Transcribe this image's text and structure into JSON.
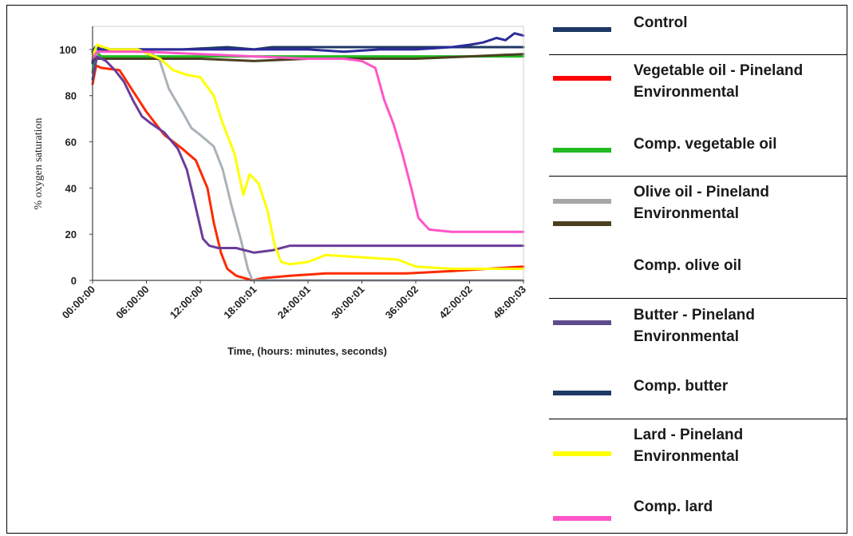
{
  "chart_data": {
    "type": "line",
    "title": "",
    "xlabel": "Time, (hours: minutes, seconds)",
    "ylabel": "% oxygen saturation",
    "ylim": [
      0,
      100
    ],
    "yticks": [
      0,
      20,
      40,
      60,
      80,
      100
    ],
    "xticks": [
      "00:00:00",
      "06:00:00",
      "12:00:00",
      "18:00:01",
      "24:00:01",
      "30:00:01",
      "36:00:02",
      "42:00:02",
      "48:00:03"
    ],
    "x_units": "hours",
    "grid": false,
    "series": [
      {
        "name": "Control",
        "color": "#1f3864",
        "x": [
          0,
          0.3,
          0.6,
          3,
          6,
          10,
          15,
          18,
          20,
          24,
          28,
          30,
          34,
          38,
          42,
          48
        ],
        "y": [
          99,
          101,
          100,
          100,
          100,
          100,
          101,
          100,
          101,
          101,
          101,
          101,
          101,
          101,
          101,
          101
        ]
      },
      {
        "name": "Vegetable oil - Pineland Environmental",
        "color": "#ff2a00",
        "x": [
          0,
          0.4,
          1,
          3,
          4.5,
          6,
          8,
          10,
          11.5,
          12.8,
          13.5,
          14.3,
          15,
          16,
          17.8,
          19,
          22,
          26,
          30,
          35,
          40,
          44,
          48
        ],
        "y": [
          85,
          93,
          92,
          91,
          82,
          73,
          63,
          57,
          52,
          40,
          25,
          12,
          5,
          2,
          0,
          1,
          2,
          3,
          3,
          3,
          4,
          5,
          6
        ]
      },
      {
        "name": "Comp. vegetable oil",
        "color": "#22bb22",
        "x": [
          0,
          0.3,
          1,
          6,
          12,
          18,
          24,
          30,
          36,
          42,
          48
        ],
        "y": [
          90,
          99,
          97,
          97,
          97,
          97,
          97,
          97,
          97,
          97,
          97
        ]
      },
      {
        "name": "Olive oil - Pineland Environmental",
        "color": "#aab2b8",
        "x": [
          0,
          0.5,
          2,
          5,
          6.5,
          7.5,
          8.5,
          10,
          11,
          12,
          13.5,
          14.5,
          15.5,
          16.5,
          17.3,
          17.8,
          18.5,
          24,
          30,
          36,
          42,
          48
        ],
        "y": [
          98,
          101,
          100,
          99,
          99,
          95,
          83,
          73,
          66,
          63,
          58,
          48,
          32,
          18,
          5,
          0,
          0,
          0,
          0,
          0,
          0,
          0
        ]
      },
      {
        "name": "Comp. olive oil",
        "color": "#4a4020",
        "x": [
          0,
          0.3,
          1,
          6,
          12,
          18,
          24,
          30,
          36,
          42,
          48
        ],
        "y": [
          95,
          96,
          96,
          96,
          96,
          95,
          96,
          96,
          96,
          97,
          98
        ]
      },
      {
        "name": "Butter - Pineland Environmental",
        "color": "#6a3d9a",
        "x": [
          0,
          0.5,
          1.5,
          2.5,
          3.5,
          4.5,
          5.5,
          6.5,
          8,
          9.5,
          10.5,
          11.3,
          12.3,
          13,
          14,
          16,
          18,
          20,
          22,
          26,
          30,
          34,
          38,
          42,
          48
        ],
        "y": [
          87,
          97,
          95,
          91,
          86,
          78,
          71,
          68,
          64,
          57,
          48,
          35,
          18,
          15,
          14,
          14,
          12,
          13,
          15,
          15,
          15,
          15,
          15,
          15,
          15
        ]
      },
      {
        "name": "Comp. butter",
        "color": "#2b2b9a",
        "x": [
          0,
          0.3,
          1,
          6,
          12,
          18,
          24,
          28,
          32,
          36,
          40,
          42,
          43.5,
          45,
          46,
          47,
          48
        ],
        "y": [
          94,
          101,
          100,
          100,
          100,
          100,
          100,
          99,
          100,
          100,
          101,
          102,
          103,
          105,
          104,
          107,
          106
        ]
      },
      {
        "name": "Lard - Pineland Environmental",
        "color": "#ffff00",
        "x": [
          0,
          0.5,
          2,
          5,
          7.5,
          9,
          10.5,
          12,
          13.5,
          14.5,
          15.8,
          16.8,
          17.5,
          18.5,
          19.5,
          20.3,
          21,
          22,
          24,
          26,
          30,
          34,
          36,
          40,
          44,
          48
        ],
        "y": [
          97,
          102,
          100,
          100,
          96,
          91,
          89,
          88,
          80,
          68,
          55,
          37,
          46,
          42,
          30,
          15,
          8,
          7,
          8,
          11,
          10,
          9,
          6,
          5,
          5,
          5
        ]
      },
      {
        "name": "Comp. lard",
        "color": "#ff55c8",
        "x": [
          0,
          0.5,
          2,
          6,
          12,
          18,
          24,
          28,
          30,
          31.5,
          32.5,
          33.5,
          34.5,
          35.5,
          36.3,
          37.5,
          40,
          44,
          48
        ],
        "y": [
          96,
          99,
          99,
          99,
          98,
          97,
          96,
          96,
          95,
          92,
          78,
          68,
          55,
          40,
          27,
          22,
          21,
          21,
          21
        ]
      }
    ]
  },
  "legend": {
    "entries": [
      {
        "label": "Control",
        "color": "#1f3864"
      },
      {
        "label": "Vegetable oil - Pineland Environmental",
        "color": "#ff0000"
      },
      {
        "label": "Comp. vegetable oil",
        "color": "#22bb22"
      },
      {
        "label": "Olive oil - Pineland Environmental",
        "color": "#a6a6a6"
      },
      {
        "label": "Comp. olive oil",
        "color": "#4a4020"
      },
      {
        "label": "Butter - Pineland Environmental",
        "color": "#5e4b8b"
      },
      {
        "label": "Comp. butter",
        "color": "#1f3864"
      },
      {
        "label": "Lard - Pineland Environmental",
        "color": "#ffff00"
      },
      {
        "label": "Comp. lard",
        "color": "#ff55c8"
      }
    ]
  }
}
